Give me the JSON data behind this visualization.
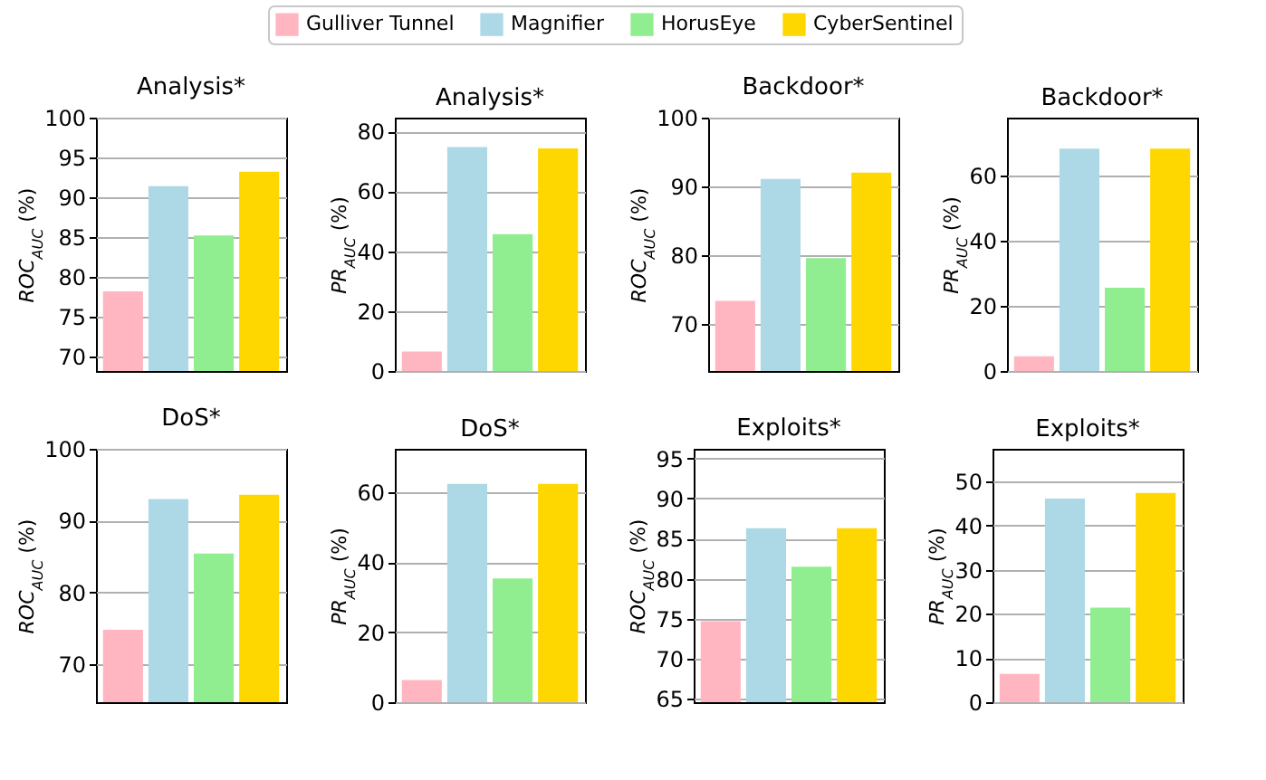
{
  "chart_data": [
    {
      "type": "bar",
      "title": "Analysis*",
      "ylabel": "ROC$_{AUC}$ (%)",
      "categories": [
        null
      ],
      "ylim": [
        68.2,
        100
      ],
      "yticks": [
        70,
        75,
        80,
        85,
        90,
        95,
        100
      ],
      "grid": "y",
      "legend": "top",
      "series": [
        {
          "name": "Gulliver Tunnel",
          "color": "#ffb6c1",
          "values": [
            78.2
          ]
        },
        {
          "name": "Magnifier",
          "color": "#add8e6",
          "values": [
            91.4
          ]
        },
        {
          "name": "HorusEye",
          "color": "#90ee90",
          "values": [
            85.2
          ]
        },
        {
          "name": "CyberSentinel",
          "color": "#ffd700",
          "values": [
            93.2
          ]
        }
      ]
    },
    {
      "type": "bar",
      "title": "Analysis*",
      "ylabel": "PR$_{AUC}$ (%)",
      "categories": [
        null
      ],
      "ylim": [
        0,
        84.6
      ],
      "yticks": [
        0,
        20,
        40,
        60,
        80
      ],
      "grid": "y",
      "series": [
        {
          "color": "#ffb6c1",
          "values": [
            6.5
          ]
        },
        {
          "color": "#add8e6",
          "values": [
            74.8
          ]
        },
        {
          "color": "#90ee90",
          "values": [
            45.7
          ]
        },
        {
          "color": "#ffd700",
          "values": [
            74.3
          ]
        }
      ]
    },
    {
      "type": "bar",
      "title": "Backdoor*",
      "ylabel": "ROC$_{AUC}$ (%)",
      "categories": [
        null
      ],
      "ylim": [
        63.2,
        100
      ],
      "yticks": [
        70,
        80,
        90,
        100
      ],
      "grid": "y",
      "series": [
        {
          "color": "#ffb6c1",
          "values": [
            73.4
          ]
        },
        {
          "color": "#add8e6",
          "values": [
            91.1
          ]
        },
        {
          "color": "#90ee90",
          "values": [
            79.6
          ]
        },
        {
          "color": "#ffd700",
          "values": [
            92.0
          ]
        }
      ]
    },
    {
      "type": "bar",
      "title": "Backdoor*",
      "ylabel": "PR$_{AUC}$ (%)",
      "categories": [
        null
      ],
      "ylim": [
        0,
        77.7
      ],
      "yticks": [
        0,
        20,
        40,
        60
      ],
      "grid": "y",
      "series": [
        {
          "color": "#ffb6c1",
          "values": [
            4.5
          ]
        },
        {
          "color": "#add8e6",
          "values": [
            68.2
          ]
        },
        {
          "color": "#90ee90",
          "values": [
            25.5
          ]
        },
        {
          "color": "#ffd700",
          "values": [
            68.2
          ]
        }
      ]
    },
    {
      "type": "bar",
      "title": "DoS*",
      "ylabel": "ROC$_{AUC}$ (%)",
      "categories": [
        null
      ],
      "ylim": [
        64.7,
        100
      ],
      "yticks": [
        70,
        80,
        90,
        100
      ],
      "grid": "y",
      "series": [
        {
          "color": "#ffb6c1",
          "values": [
            74.8
          ]
        },
        {
          "color": "#add8e6",
          "values": [
            93.0
          ]
        },
        {
          "color": "#90ee90",
          "values": [
            85.4
          ]
        },
        {
          "color": "#ffd700",
          "values": [
            93.6
          ]
        }
      ]
    },
    {
      "type": "bar",
      "title": "DoS*",
      "ylabel": "PR$_{AUC}$ (%)",
      "categories": [
        null
      ],
      "ylim": [
        0,
        72.3
      ],
      "yticks": [
        0,
        20,
        40,
        60
      ],
      "grid": "y",
      "series": [
        {
          "color": "#ffb6c1",
          "values": [
            6.3
          ]
        },
        {
          "color": "#add8e6",
          "values": [
            62.3
          ]
        },
        {
          "color": "#90ee90",
          "values": [
            35.3
          ]
        },
        {
          "color": "#ffd700",
          "values": [
            62.3
          ]
        }
      ]
    },
    {
      "type": "bar",
      "title": "Exploits*",
      "ylabel": "ROC$_{AUC}$ (%)",
      "categories": [
        null
      ],
      "ylim": [
        64.6,
        96.2
      ],
      "yticks": [
        65,
        70,
        75,
        80,
        85,
        90,
        95
      ],
      "grid": "y",
      "series": [
        {
          "color": "#ffb6c1",
          "values": [
            74.7
          ]
        },
        {
          "color": "#add8e6",
          "values": [
            86.3
          ]
        },
        {
          "color": "#90ee90",
          "values": [
            81.5
          ]
        },
        {
          "color": "#ffd700",
          "values": [
            86.3
          ]
        }
      ]
    },
    {
      "type": "bar",
      "title": "Exploits*",
      "ylabel": "PR$_{AUC}$ (%)",
      "categories": [
        null
      ],
      "ylim": [
        0,
        57.4
      ],
      "yticks": [
        0,
        10,
        20,
        30,
        40,
        50
      ],
      "grid": "y",
      "series": [
        {
          "color": "#ffb6c1",
          "values": [
            6.4
          ]
        },
        {
          "color": "#add8e6",
          "values": [
            46.1
          ]
        },
        {
          "color": "#90ee90",
          "values": [
            21.4
          ]
        },
        {
          "color": "#ffd700",
          "values": [
            47.4
          ]
        }
      ]
    }
  ]
}
